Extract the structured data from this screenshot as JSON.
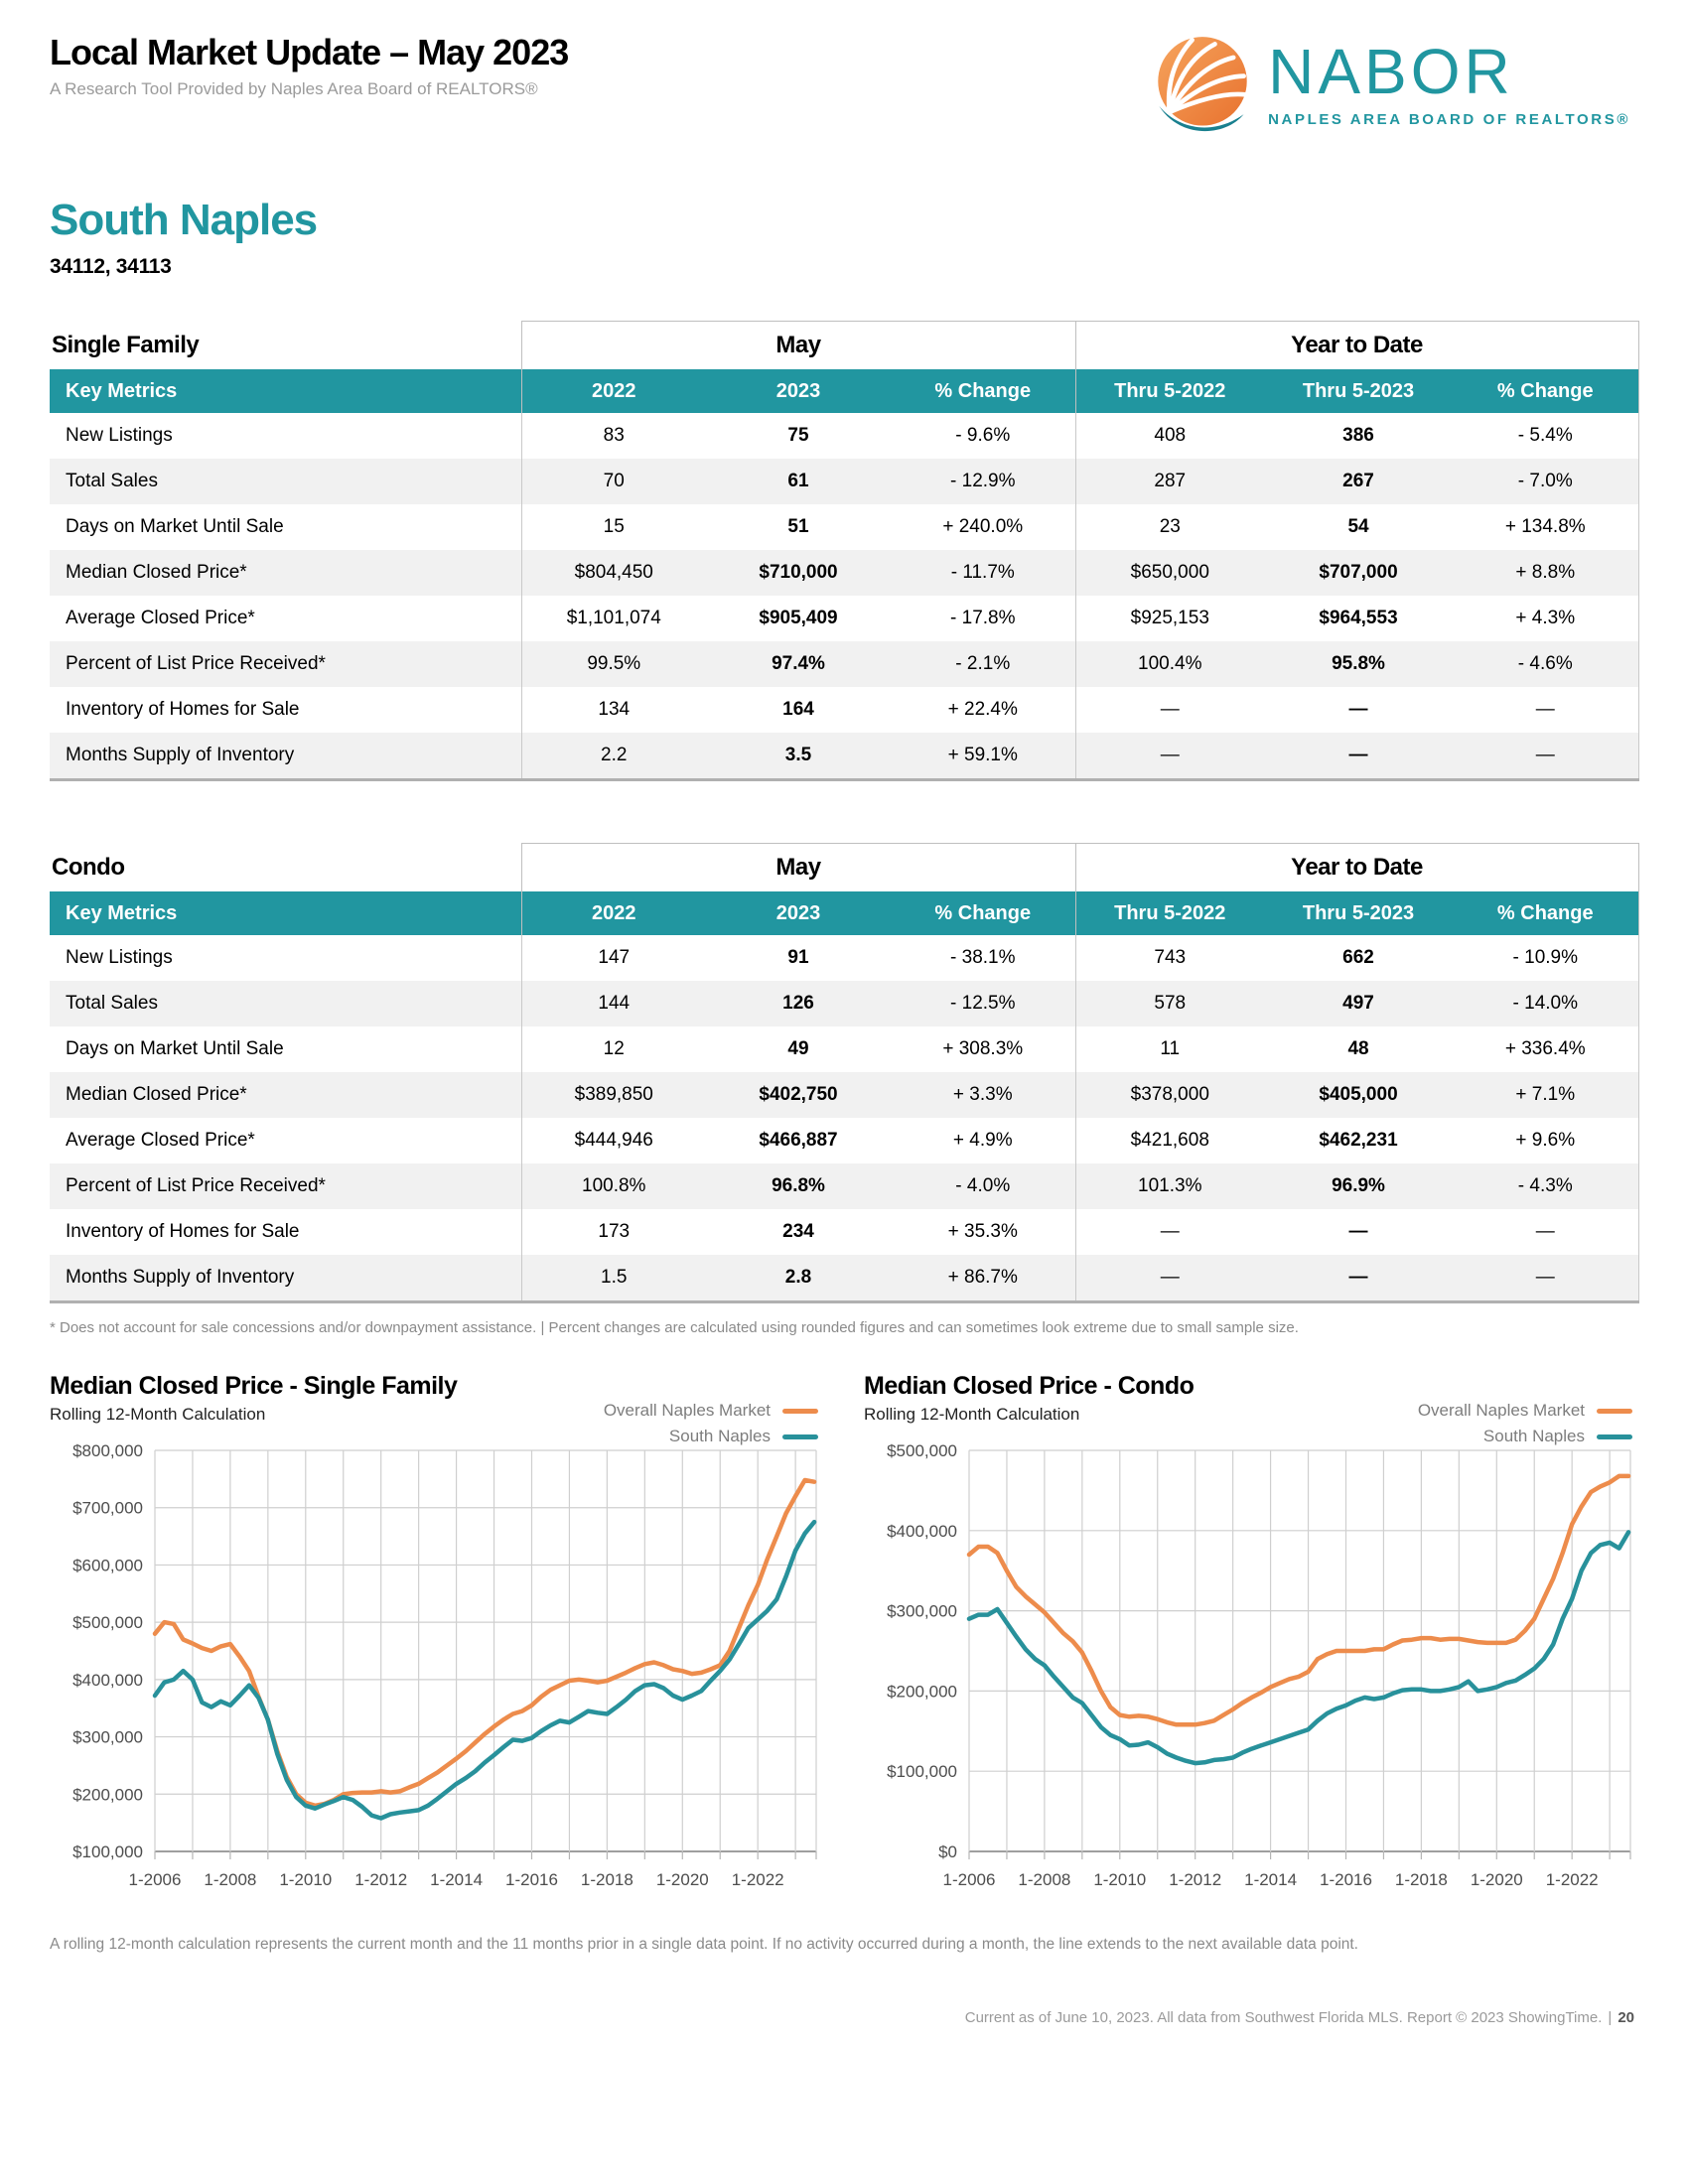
{
  "header": {
    "title": "Local Market Update – May 2023",
    "subtitle": "A Research Tool Provided by Naples Area Board of REALTORS®",
    "logo": {
      "name": "NABOR",
      "tagline": "NAPLES AREA BOARD OF REALTORS®",
      "brand_teal": "#2196A0",
      "brand_orange": "#EB7D33"
    }
  },
  "region": {
    "name": "South Naples",
    "zip_codes": "34112, 34113"
  },
  "tables": [
    {
      "key": "single-family",
      "section_label": "Single Family",
      "may_label": "May",
      "ytd_label": "Year to Date",
      "columns": [
        "Key Metrics",
        "2022",
        "2023",
        "% Change",
        "Thru 5-2022",
        "Thru 5-2023",
        "% Change"
      ],
      "rows": [
        [
          "New Listings",
          "83",
          "75",
          "- 9.6%",
          "408",
          "386",
          "- 5.4%"
        ],
        [
          "Total Sales",
          "70",
          "61",
          "- 12.9%",
          "287",
          "267",
          "- 7.0%"
        ],
        [
          "Days on Market Until Sale",
          "15",
          "51",
          "+ 240.0%",
          "23",
          "54",
          "+ 134.8%"
        ],
        [
          "Median Closed Price*",
          "$804,450",
          "$710,000",
          "- 11.7%",
          "$650,000",
          "$707,000",
          "+ 8.8%"
        ],
        [
          "Average Closed Price*",
          "$1,101,074",
          "$905,409",
          "- 17.8%",
          "$925,153",
          "$964,553",
          "+ 4.3%"
        ],
        [
          "Percent of List Price Received*",
          "99.5%",
          "97.4%",
          "- 2.1%",
          "100.4%",
          "95.8%",
          "- 4.6%"
        ],
        [
          "Inventory of Homes for Sale",
          "134",
          "164",
          "+ 22.4%",
          "—",
          "—",
          "—"
        ],
        [
          "Months Supply of Inventory",
          "2.2",
          "3.5",
          "+ 59.1%",
          "—",
          "—",
          "—"
        ]
      ]
    },
    {
      "key": "condo",
      "section_label": "Condo",
      "may_label": "May",
      "ytd_label": "Year to Date",
      "columns": [
        "Key Metrics",
        "2022",
        "2023",
        "% Change",
        "Thru 5-2022",
        "Thru 5-2023",
        "% Change"
      ],
      "rows": [
        [
          "New Listings",
          "147",
          "91",
          "- 38.1%",
          "743",
          "662",
          "- 10.9%"
        ],
        [
          "Total Sales",
          "144",
          "126",
          "- 12.5%",
          "578",
          "497",
          "- 14.0%"
        ],
        [
          "Days on Market Until Sale",
          "12",
          "49",
          "+ 308.3%",
          "11",
          "48",
          "+ 336.4%"
        ],
        [
          "Median Closed Price*",
          "$389,850",
          "$402,750",
          "+ 3.3%",
          "$378,000",
          "$405,000",
          "+ 7.1%"
        ],
        [
          "Average Closed Price*",
          "$444,946",
          "$466,887",
          "+ 4.9%",
          "$421,608",
          "$462,231",
          "+ 9.6%"
        ],
        [
          "Percent of List Price Received*",
          "100.8%",
          "96.8%",
          "- 4.0%",
          "101.3%",
          "96.9%",
          "- 4.3%"
        ],
        [
          "Inventory of Homes for Sale",
          "173",
          "234",
          "+ 35.3%",
          "—",
          "—",
          "—"
        ],
        [
          "Months Supply of Inventory",
          "1.5",
          "2.8",
          "+ 86.7%",
          "—",
          "—",
          "—"
        ]
      ]
    }
  ],
  "table_footnote": "* Does not account for sale concessions and/or downpayment assistance. | Percent changes are calculated using rounded figures and can sometimes look extreme due to small sample size.",
  "charts_note": "A rolling 12-month calculation represents the current month and the 11 months prior in a single data point. If no activity occurred during a month, the line extends to the next available data point.",
  "credit": {
    "text": "Current as of June 10, 2023. All data from Southwest Florida MLS. Report © 2023 ShowingTime.",
    "page_number": "20"
  },
  "chart_data": [
    {
      "type": "line",
      "title": "Median Closed Price - Single Family",
      "subtitle": "Rolling 12-Month Calculation",
      "unit": "USD thousands",
      "legend_position": "top-right",
      "grid": true,
      "x_start": 2006.0,
      "x_step": 0.25,
      "xlim": [
        2006.0,
        2023.55
      ],
      "ylim": [
        100,
        800
      ],
      "ytick_step": 100,
      "ytick_labels": [
        "$100,000",
        "$200,000",
        "$300,000",
        "$400,000",
        "$500,000",
        "$600,000",
        "$700,000",
        "$800,000"
      ],
      "grid_years": [
        2006,
        2007,
        2008,
        2009,
        2010,
        2011,
        2012,
        2013,
        2014,
        2015,
        2016,
        2017,
        2018,
        2019,
        2020,
        2021,
        2022,
        2023
      ],
      "xtick_positions": [
        2006,
        2008,
        2010,
        2012,
        2014,
        2016,
        2018,
        2020,
        2022
      ],
      "xtick_labels": [
        "1-2006",
        "1-2008",
        "1-2010",
        "1-2012",
        "1-2014",
        "1-2016",
        "1-2018",
        "1-2020",
        "1-2022"
      ],
      "series": [
        {
          "name": "Overall Naples Market",
          "color": "#ED8C4C",
          "values": [
            480,
            500,
            497,
            470,
            463,
            455,
            450,
            458,
            462,
            440,
            415,
            370,
            330,
            275,
            230,
            200,
            185,
            180,
            183,
            190,
            200,
            202,
            203,
            203,
            205,
            203,
            205,
            212,
            218,
            228,
            238,
            250,
            262,
            275,
            290,
            305,
            318,
            330,
            340,
            345,
            355,
            370,
            382,
            390,
            398,
            400,
            398,
            395,
            398,
            405,
            412,
            420,
            427,
            430,
            425,
            418,
            415,
            410,
            412,
            418,
            425,
            450,
            490,
            530,
            565,
            610,
            650,
            690,
            720,
            748,
            745
          ]
        },
        {
          "name": "South Naples",
          "color": "#28919B",
          "values": [
            372,
            395,
            400,
            415,
            400,
            360,
            352,
            362,
            355,
            372,
            390,
            368,
            330,
            270,
            225,
            195,
            180,
            175,
            182,
            188,
            195,
            190,
            178,
            163,
            158,
            165,
            168,
            170,
            172,
            180,
            192,
            205,
            218,
            228,
            240,
            255,
            268,
            282,
            295,
            293,
            298,
            310,
            320,
            328,
            325,
            335,
            345,
            342,
            340,
            352,
            365,
            380,
            390,
            392,
            385,
            372,
            365,
            372,
            380,
            398,
            415,
            435,
            462,
            490,
            505,
            520,
            540,
            580,
            625,
            655,
            675
          ]
        }
      ]
    },
    {
      "type": "line",
      "title": "Median Closed Price - Condo",
      "subtitle": "Rolling 12-Month Calculation",
      "unit": "USD thousands",
      "legend_position": "top-right",
      "grid": true,
      "x_start": 2006.0,
      "x_step": 0.25,
      "xlim": [
        2006.0,
        2023.55
      ],
      "ylim": [
        0,
        500
      ],
      "ytick_step": 100,
      "ytick_labels": [
        "$0",
        "$100,000",
        "$200,000",
        "$300,000",
        "$400,000",
        "$500,000"
      ],
      "grid_years": [
        2006,
        2007,
        2008,
        2009,
        2010,
        2011,
        2012,
        2013,
        2014,
        2015,
        2016,
        2017,
        2018,
        2019,
        2020,
        2021,
        2022,
        2023
      ],
      "xtick_positions": [
        2006,
        2008,
        2010,
        2012,
        2014,
        2016,
        2018,
        2020,
        2022
      ],
      "xtick_labels": [
        "1-2006",
        "1-2008",
        "1-2010",
        "1-2012",
        "1-2014",
        "1-2016",
        "1-2018",
        "1-2020",
        "1-2022"
      ],
      "series": [
        {
          "name": "Overall Naples Market",
          "color": "#ED8C4C",
          "values": [
            370,
            380,
            380,
            372,
            350,
            330,
            318,
            308,
            298,
            285,
            272,
            262,
            248,
            225,
            200,
            180,
            170,
            168,
            169,
            168,
            165,
            161,
            158,
            158,
            158,
            160,
            163,
            170,
            177,
            185,
            192,
            198,
            205,
            210,
            215,
            218,
            224,
            240,
            246,
            250,
            250,
            250,
            250,
            252,
            252,
            258,
            263,
            264,
            266,
            266,
            264,
            265,
            265,
            263,
            261,
            260,
            260,
            260,
            264,
            275,
            290,
            315,
            340,
            372,
            408,
            430,
            448,
            455,
            460,
            468,
            468
          ]
        },
        {
          "name": "South Naples",
          "color": "#28919B",
          "values": [
            290,
            295,
            295,
            302,
            285,
            268,
            252,
            240,
            232,
            218,
            205,
            192,
            185,
            170,
            155,
            145,
            140,
            132,
            133,
            136,
            130,
            122,
            117,
            113,
            110,
            111,
            114,
            115,
            117,
            123,
            128,
            132,
            136,
            140,
            144,
            148,
            152,
            163,
            172,
            178,
            182,
            188,
            192,
            190,
            192,
            197,
            201,
            202,
            202,
            200,
            200,
            202,
            205,
            212,
            200,
            202,
            205,
            210,
            213,
            220,
            228,
            240,
            258,
            290,
            315,
            350,
            372,
            382,
            385,
            378,
            398
          ]
        }
      ]
    }
  ]
}
